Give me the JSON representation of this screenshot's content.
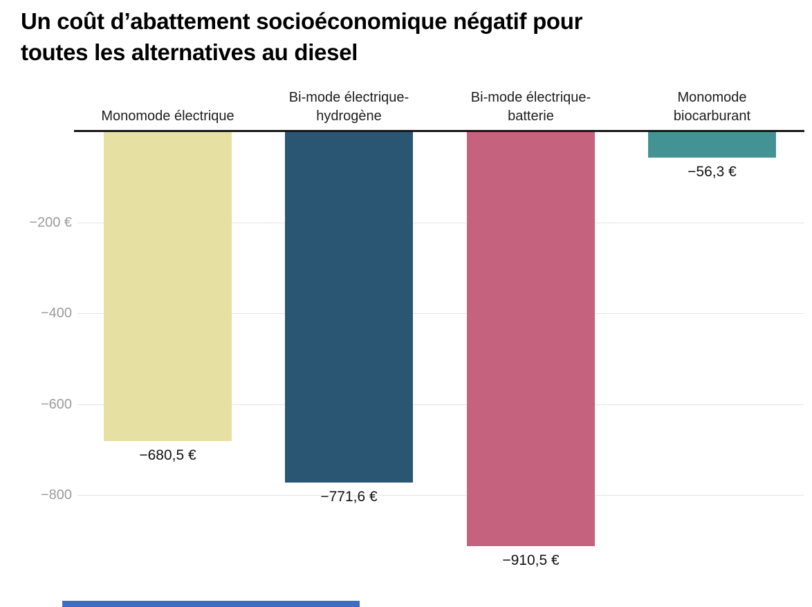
{
  "title": {
    "line1": "Un coût d’abattement socioéconomique négatif pour",
    "line2": "toutes les alternatives au diesel"
  },
  "chart_data": {
    "type": "bar",
    "title": "Un coût d’abattement socioéconomique négatif pour toutes les alternatives au diesel",
    "orientation": "vertical-negative",
    "categories": [
      "Monomode électrique",
      "Bi-mode électrique-hydrogène",
      "Bi-mode électrique-batterie",
      "Monomode biocarburant"
    ],
    "values": [
      -680.5,
      -771.6,
      -910.5,
      -56.3
    ],
    "bars": [
      {
        "category_label": "Monomode électrique",
        "value": -680.5,
        "value_label": "−680,5 €",
        "color": "#e6e1a3"
      },
      {
        "category_label": "Bi-mode électrique-\nhydrogène",
        "value": -771.6,
        "value_label": "−771,6 €",
        "color": "#2a5674"
      },
      {
        "category_label": "Bi-mode électrique-\nbatterie",
        "value": -910.5,
        "value_label": "−910,5 €",
        "color": "#c5627e"
      },
      {
        "category_label": "Monomode\nbiocarburant",
        "value": -56.3,
        "value_label": "−56,3 €",
        "color": "#449394"
      }
    ],
    "y_axis": {
      "unit": "€",
      "range": [
        0,
        -1000
      ],
      "baseline_value": 0,
      "ticks": [
        {
          "value": -200,
          "label": "−200 €"
        },
        {
          "value": -400,
          "label": "−400"
        },
        {
          "value": -600,
          "label": "−600"
        },
        {
          "value": -800,
          "label": "−800"
        }
      ]
    },
    "grid": true,
    "legend": "none"
  },
  "colors": {
    "title": "#000000",
    "zero_line": "#141414",
    "grid_line": "#e4e4e4",
    "axis_label": "#9c9c9c",
    "value_label": "#111111",
    "category_label": "#1c1c1c",
    "background": "#ffffff",
    "footer_strip": "#3f6ec0"
  }
}
